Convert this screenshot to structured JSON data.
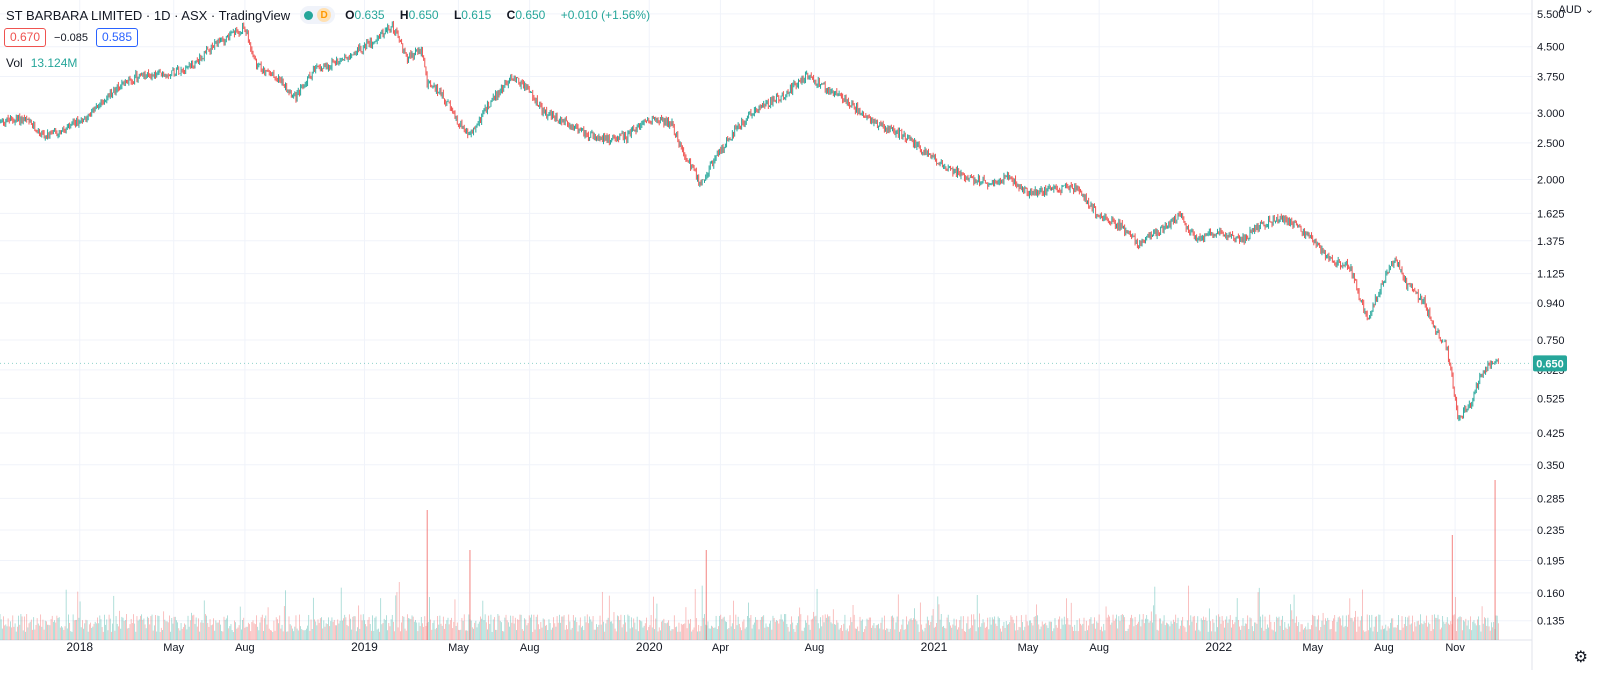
{
  "header": {
    "title": "ST BARBARA LIMITED · 1D · ASX · TradingView",
    "d_badge": "D",
    "ohlc": [
      {
        "k": "O",
        "v": "0.635"
      },
      {
        "k": "H",
        "v": "0.650"
      },
      {
        "k": "L",
        "v": "0.615"
      },
      {
        "k": "C",
        "v": "0.650"
      }
    ],
    "change": "+0.010 (+1.56%)",
    "price_a": "0.670",
    "spread": "−0.085",
    "price_b": "0.585",
    "vol_label": "Vol",
    "vol_value": "13.124M",
    "currency": "AUD",
    "last_price": "0.650"
  },
  "colors": {
    "up": "#26a69a",
    "down": "#ef5350",
    "grid": "#f0f3fa",
    "badge": "#26a69a"
  },
  "chart_data": {
    "type": "candlestick",
    "title": "ST BARBARA LIMITED · 1D · ASX",
    "scale": "log",
    "ylim": [
      0.12,
      5.7
    ],
    "y_ticks": [
      "5.500",
      "4.500",
      "3.750",
      "3.000",
      "2.500",
      "2.000",
      "1.625",
      "1.375",
      "1.125",
      "0.940",
      "0.750",
      "0.625",
      "0.525",
      "0.425",
      "0.350",
      "0.285",
      "0.235",
      "0.195",
      "0.160",
      "0.135"
    ],
    "x_ticks": [
      {
        "label": "2018",
        "t": 2018.0,
        "major": true
      },
      {
        "label": "May",
        "t": 2018.33
      },
      {
        "label": "Aug",
        "t": 2018.58
      },
      {
        "label": "2019",
        "t": 2019.0,
        "major": true
      },
      {
        "label": "May",
        "t": 2019.33
      },
      {
        "label": "Aug",
        "t": 2019.58
      },
      {
        "label": "2020",
        "t": 2020.0,
        "major": true
      },
      {
        "label": "Apr",
        "t": 2020.25
      },
      {
        "label": "Aug",
        "t": 2020.58
      },
      {
        "label": "2021",
        "t": 2021.0,
        "major": true
      },
      {
        "label": "May",
        "t": 2021.33
      },
      {
        "label": "Aug",
        "t": 2021.58
      },
      {
        "label": "2022",
        "t": 2022.0,
        "major": true
      },
      {
        "label": "May",
        "t": 2022.33
      },
      {
        "label": "Aug",
        "t": 2022.58
      },
      {
        "label": "Nov",
        "t": 2022.83
      }
    ],
    "price_path": [
      [
        2017.72,
        2.85
      ],
      [
        2017.8,
        2.9
      ],
      [
        2017.88,
        2.6
      ],
      [
        2017.95,
        2.7
      ],
      [
        2018.05,
        3.05
      ],
      [
        2018.13,
        3.5
      ],
      [
        2018.2,
        3.75
      ],
      [
        2018.3,
        3.8
      ],
      [
        2018.4,
        4.05
      ],
      [
        2018.5,
        4.7
      ],
      [
        2018.58,
        5.05
      ],
      [
        2018.62,
        4.0
      ],
      [
        2018.7,
        3.7
      ],
      [
        2018.76,
        3.3
      ],
      [
        2018.82,
        3.9
      ],
      [
        2018.9,
        4.1
      ],
      [
        2019.0,
        4.5
      ],
      [
        2019.1,
        5.1
      ],
      [
        2019.15,
        4.2
      ],
      [
        2019.2,
        4.4
      ],
      [
        2019.22,
        3.6
      ],
      [
        2019.27,
        3.4
      ],
      [
        2019.32,
        2.9
      ],
      [
        2019.37,
        2.6
      ],
      [
        2019.44,
        3.2
      ],
      [
        2019.52,
        3.75
      ],
      [
        2019.57,
        3.5
      ],
      [
        2019.63,
        3.0
      ],
      [
        2019.72,
        2.8
      ],
      [
        2019.82,
        2.55
      ],
      [
        2019.92,
        2.6
      ],
      [
        2020.0,
        2.9
      ],
      [
        2020.08,
        2.8
      ],
      [
        2020.12,
        2.35
      ],
      [
        2020.18,
        1.95
      ],
      [
        2020.22,
        2.2
      ],
      [
        2020.3,
        2.7
      ],
      [
        2020.38,
        3.1
      ],
      [
        2020.46,
        3.3
      ],
      [
        2020.55,
        3.75
      ],
      [
        2020.62,
        3.5
      ],
      [
        2020.7,
        3.2
      ],
      [
        2020.8,
        2.8
      ],
      [
        2020.9,
        2.6
      ],
      [
        2021.0,
        2.25
      ],
      [
        2021.1,
        2.05
      ],
      [
        2021.2,
        1.95
      ],
      [
        2021.26,
        2.05
      ],
      [
        2021.33,
        1.85
      ],
      [
        2021.42,
        1.88
      ],
      [
        2021.5,
        1.9
      ],
      [
        2021.58,
        1.6
      ],
      [
        2021.66,
        1.5
      ],
      [
        2021.72,
        1.35
      ],
      [
        2021.8,
        1.48
      ],
      [
        2021.86,
        1.6
      ],
      [
        2021.92,
        1.4
      ],
      [
        2022.0,
        1.45
      ],
      [
        2022.08,
        1.38
      ],
      [
        2022.14,
        1.5
      ],
      [
        2022.2,
        1.58
      ],
      [
        2022.28,
        1.5
      ],
      [
        2022.34,
        1.35
      ],
      [
        2022.4,
        1.2
      ],
      [
        2022.46,
        1.18
      ],
      [
        2022.52,
        0.85
      ],
      [
        2022.56,
        1.0
      ],
      [
        2022.62,
        1.25
      ],
      [
        2022.66,
        1.05
      ],
      [
        2022.72,
        0.95
      ],
      [
        2022.76,
        0.8
      ],
      [
        2022.8,
        0.72
      ],
      [
        2022.84,
        0.47
      ],
      [
        2022.88,
        0.5
      ],
      [
        2022.92,
        0.6
      ],
      [
        2022.96,
        0.66
      ],
      [
        2022.985,
        0.65
      ]
    ],
    "last_close": 0.65
  }
}
